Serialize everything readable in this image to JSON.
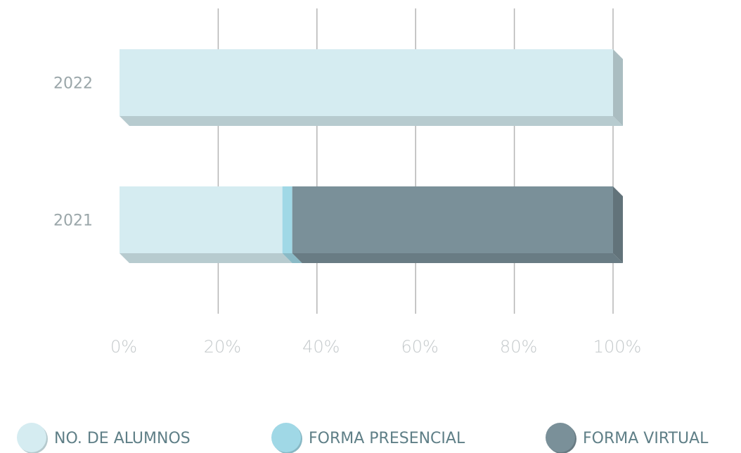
{
  "chart_data": {
    "type": "bar",
    "orientation": "horizontal",
    "stacked": true,
    "categories": [
      "2022",
      "2021"
    ],
    "series": [
      {
        "name": "NO. DE ALUMNOS",
        "color": "#d5ecf1",
        "values": [
          100,
          33
        ]
      },
      {
        "name": "FORMA PRESENCIAL",
        "color": "#a0d8e6",
        "values": [
          0,
          2
        ]
      },
      {
        "name": "FORMA VIRTUAL",
        "color": "#7a9099",
        "values": [
          0,
          65
        ]
      }
    ],
    "xlim": [
      0,
      100
    ],
    "xticks": [
      {
        "value": 0,
        "label": "0%"
      },
      {
        "value": 20,
        "label": "20%"
      },
      {
        "value": 40,
        "label": "40%"
      },
      {
        "value": 60,
        "label": "60%"
      },
      {
        "value": 80,
        "label": "80%"
      },
      {
        "value": 100,
        "label": "100%"
      }
    ],
    "grid": true,
    "legend": "bottom"
  }
}
